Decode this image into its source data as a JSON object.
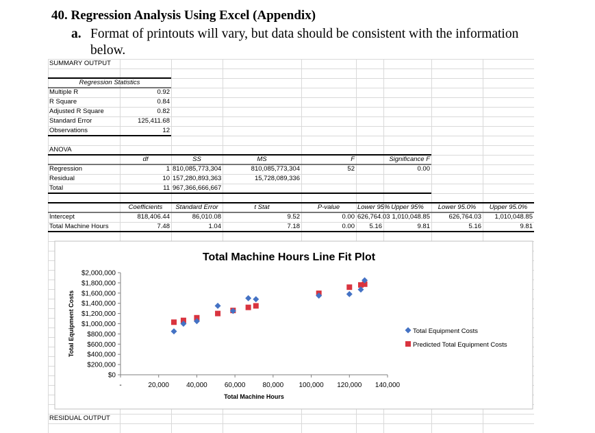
{
  "heading": {
    "title": "40. Regression Analysis Using Excel (Appendix)",
    "item_label": "a.",
    "item_line1": "Format of printouts will vary, but data should be consistent with the information",
    "item_line2": "below."
  },
  "summary": {
    "title": "SUMMARY OUTPUT",
    "regstats_header": "Regression Statistics",
    "rows": [
      {
        "label": "Multiple R",
        "value": "0.92"
      },
      {
        "label": "R Square",
        "value": "0.84"
      },
      {
        "label": "Adjusted R Square",
        "value": "0.82"
      },
      {
        "label": "Standard Error",
        "value": "125,411.68"
      },
      {
        "label": "Observations",
        "value": "12"
      }
    ]
  },
  "anova": {
    "title": "ANOVA",
    "headers": {
      "df": "df",
      "ss": "SS",
      "ms": "MS",
      "f": "F",
      "sigf": "Significance F"
    },
    "rows": [
      {
        "label": "Regression",
        "df": "1",
        "ss": "810,085,773,304",
        "ms": "810,085,773,304",
        "f": "52",
        "sigf": "0.00"
      },
      {
        "label": "Residual",
        "df": "10",
        "ss": "157,280,893,363",
        "ms": "15,728,089,336",
        "f": "",
        "sigf": ""
      },
      {
        "label": "Total",
        "df": "11",
        "ss": "967,366,666,667",
        "ms": "",
        "f": "",
        "sigf": ""
      }
    ]
  },
  "coefficients": {
    "headers": [
      "Coefficients",
      "Standard Error",
      "t Stat",
      "P-value",
      "Lower 95%",
      "Upper 95%",
      "Lower 95.0%",
      "Upper 95.0%"
    ],
    "rows": [
      {
        "label": "Intercept",
        "values": [
          "818,406.44",
          "86,010.08",
          "9.52",
          "0.00",
          "626,764.03",
          "1,010,048.85",
          "626,764.03",
          "1,010,048.85"
        ]
      },
      {
        "label": "Total Machine Hours",
        "values": [
          "7.48",
          "1.04",
          "7.18",
          "0.00",
          "5.16",
          "9.81",
          "5.16",
          "9.81"
        ]
      }
    ]
  },
  "residual_title": "RESIDUAL OUTPUT",
  "chart_data": {
    "type": "scatter",
    "title": "Total Machine Hours Line Fit Plot",
    "xlabel": "Total Machine Hours",
    "ylabel": "Total Equipment Costs",
    "xlim": [
      0,
      140000
    ],
    "ylim": [
      0,
      2000000
    ],
    "x_ticks": [
      "-",
      "20,000",
      "40,000",
      "60,000",
      "80,000",
      "100,000",
      "120,000",
      "140,000"
    ],
    "y_ticks": [
      "$0",
      "$200,000",
      "$400,000",
      "$600,000",
      "$800,000",
      "$1,000,000",
      "$1,200,000",
      "$1,400,000",
      "$1,600,000",
      "$1,800,000",
      "$2,000,000"
    ],
    "legend_position": "right",
    "colors": {
      "actual": "#4472C4",
      "predicted": "#D9343F"
    },
    "series": [
      {
        "name": "Total Equipment Costs",
        "marker": "diamond",
        "x": [
          28000,
          33000,
          40000,
          51000,
          59000,
          67000,
          71000,
          104000,
          120000,
          126000,
          128000
        ],
        "y": [
          850000,
          1000000,
          1050000,
          1350000,
          1250000,
          1500000,
          1480000,
          1550000,
          1580000,
          1670000,
          1850000
        ]
      },
      {
        "name": "Predicted Total Equipment Costs",
        "marker": "square",
        "x": [
          28000,
          33000,
          40000,
          51000,
          59000,
          67000,
          71000,
          104000,
          120000,
          126000,
          128000
        ],
        "y": [
          1030000,
          1065000,
          1117000,
          1200000,
          1260000,
          1320000,
          1350000,
          1596000,
          1716000,
          1760000,
          1775000
        ]
      }
    ]
  }
}
